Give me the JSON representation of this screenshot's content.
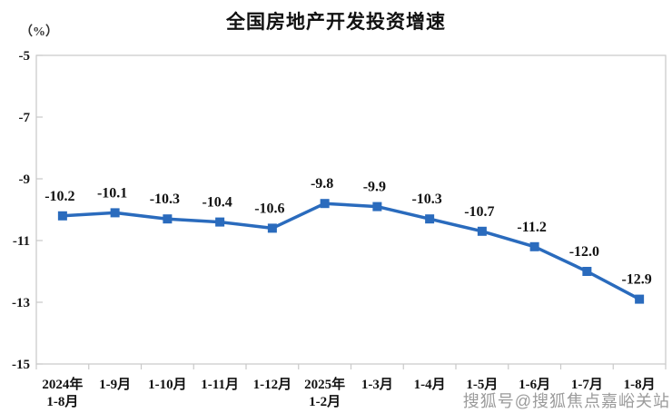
{
  "header": {
    "title": "全国房地产开发投资增速",
    "unit_label": "（%）"
  },
  "watermark": "搜狐号@搜狐焦点嘉峪关站",
  "colors": {
    "line": "#2a6bbd",
    "marker": "#2a6bbd",
    "frame": "#c9c9c9",
    "text": "#111111",
    "watermark": "#969696"
  },
  "chart_data": {
    "type": "line",
    "title": "全国房地产开发投资增速",
    "ylabel": "（%）",
    "xlabel": "",
    "categories": [
      "2024年\n1-8月",
      "1-9月",
      "1-10月",
      "1-11月",
      "1-12月",
      "2025年\n1-2月",
      "1-3月",
      "1-4月",
      "1-5月",
      "1-6月",
      "1-7月",
      "1-8月"
    ],
    "values": [
      -10.2,
      -10.1,
      -10.3,
      -10.4,
      -10.6,
      -9.8,
      -9.9,
      -10.3,
      -10.7,
      -11.2,
      -12.0,
      -12.9
    ],
    "point_labels": [
      "-10.2",
      "-10.1",
      "-10.3",
      "-10.4",
      "-10.6",
      "-9.8",
      "-9.9",
      "-10.3",
      "-10.7",
      "-11.2",
      "-12.0",
      "-12.9"
    ],
    "y_ticks": [
      -5,
      -7,
      -9,
      -11,
      -13,
      -15
    ],
    "ylim": [
      -15,
      -5
    ],
    "grid": false,
    "legend": "none",
    "marker_shape": "square",
    "line_color": "#2a6bbd"
  }
}
